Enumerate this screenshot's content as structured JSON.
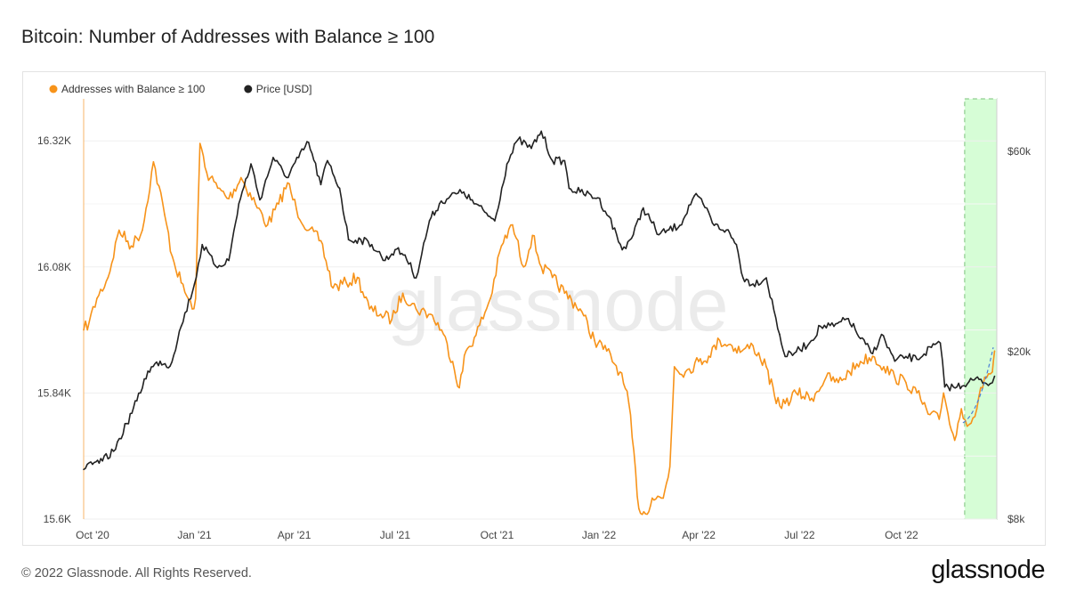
{
  "title": "Bitcoin: Number of Addresses with Balance ≥ 100",
  "footer": "© 2022 Glassnode. All Rights Reserved.",
  "brand": "glassnode",
  "watermark": "glassnode",
  "colors": {
    "addresses": "#f7931a",
    "price": "#222222",
    "forecast_band": "#d6fdd6",
    "forecast_border": "#7ac27a",
    "forecast_line": "#4a7fd6",
    "grid": "#efefef"
  },
  "chart_data": {
    "type": "line",
    "title": "Bitcoin: Number of Addresses with Balance ≥ 100",
    "x_range": [
      "2020-09-23",
      "2022-12-26"
    ],
    "x_ticks": [
      {
        "label": "Oct '20",
        "date": "2020-10-01"
      },
      {
        "label": "Jan '21",
        "date": "2021-01-01"
      },
      {
        "label": "Apr '21",
        "date": "2021-04-01"
      },
      {
        "label": "Jul '21",
        "date": "2021-07-01"
      },
      {
        "label": "Oct '21",
        "date": "2021-10-01"
      },
      {
        "label": "Jan '22",
        "date": "2022-01-01"
      },
      {
        "label": "Apr '22",
        "date": "2022-04-01"
      },
      {
        "label": "Jul '22",
        "date": "2022-07-01"
      },
      {
        "label": "Oct '22",
        "date": "2022-10-01"
      }
    ],
    "y_left": {
      "ylim": [
        15600,
        16400
      ],
      "ticks": [
        {
          "label": "15.6K",
          "value": 15600
        },
        {
          "label": "15.84K",
          "value": 15840
        },
        {
          "label": "16.08K",
          "value": 16080
        },
        {
          "label": "16.32K",
          "value": 16320
        }
      ]
    },
    "y_right": {
      "scale": "log",
      "ylim": [
        8000,
        80000
      ],
      "ticks": [
        {
          "label": "$8k",
          "value": 8000
        },
        {
          "label": "$20k",
          "value": 20000
        },
        {
          "label": "$60k",
          "value": 60000
        }
      ]
    },
    "forecast_region": [
      "2022-11-27",
      "2022-12-26"
    ],
    "legend_position": "top-left",
    "legend": [
      "Addresses with Balance ≥ 100",
      "Price [USD]"
    ],
    "series": [
      {
        "name": "Addresses with Balance ≥ 100",
        "axis": "left",
        "x": [
          "2020-09-23",
          "2020-09-28",
          "2020-10-05",
          "2020-10-15",
          "2020-10-25",
          "2020-11-05",
          "2020-11-15",
          "2020-11-25",
          "2020-12-05",
          "2020-12-12",
          "2020-12-20",
          "2020-12-30",
          "2021-01-02",
          "2021-01-06",
          "2021-01-12",
          "2021-01-22",
          "2021-02-01",
          "2021-02-12",
          "2021-02-25",
          "2021-03-08",
          "2021-03-18",
          "2021-03-26",
          "2021-04-03",
          "2021-04-14",
          "2021-04-25",
          "2021-05-06",
          "2021-05-18",
          "2021-05-28",
          "2021-06-08",
          "2021-06-18",
          "2021-06-28",
          "2021-07-08",
          "2021-07-20",
          "2021-08-02",
          "2021-08-12",
          "2021-08-22",
          "2021-08-28",
          "2021-09-03",
          "2021-09-12",
          "2021-09-25",
          "2021-10-05",
          "2021-10-15",
          "2021-10-25",
          "2021-11-02",
          "2021-11-10",
          "2021-11-20",
          "2021-12-01",
          "2021-12-15",
          "2021-12-28",
          "2022-01-08",
          "2022-01-20",
          "2022-01-28",
          "2022-02-06",
          "2022-02-12",
          "2022-02-18",
          "2022-02-28",
          "2022-03-06",
          "2022-03-10",
          "2022-03-20",
          "2022-04-01",
          "2022-04-10",
          "2022-04-20",
          "2022-05-01",
          "2022-05-10",
          "2022-05-20",
          "2022-06-01",
          "2022-06-10",
          "2022-06-18",
          "2022-06-28",
          "2022-07-12",
          "2022-07-25",
          "2022-08-05",
          "2022-08-15",
          "2022-08-25",
          "2022-09-05",
          "2022-09-15",
          "2022-09-25",
          "2022-10-05",
          "2022-10-15",
          "2022-10-25",
          "2022-11-04",
          "2022-11-08",
          "2022-11-12",
          "2022-11-18",
          "2022-11-24",
          "2022-12-01",
          "2022-12-08",
          "2022-12-15",
          "2022-12-22",
          "2022-12-24"
        ],
        "values": [
          15960,
          15975,
          16020,
          16060,
          16150,
          16120,
          16150,
          16280,
          16180,
          16100,
          16050,
          16000,
          16020,
          16315,
          16260,
          16230,
          16210,
          16250,
          16200,
          16160,
          16200,
          16240,
          16190,
          16150,
          16130,
          16040,
          16050,
          16060,
          16000,
          15990,
          15980,
          16030,
          16000,
          15990,
          15960,
          15900,
          15850,
          15920,
          15950,
          16020,
          16120,
          16160,
          16080,
          16140,
          16080,
          16060,
          16030,
          16000,
          15940,
          15920,
          15880,
          15820,
          15620,
          15610,
          15640,
          15640,
          15700,
          15890,
          15880,
          15900,
          15910,
          15940,
          15930,
          15920,
          15930,
          15890,
          15820,
          15820,
          15840,
          15830,
          15870,
          15860,
          15880,
          15900,
          15910,
          15890,
          15870,
          15860,
          15840,
          15800,
          15790,
          15840,
          15800,
          15750,
          15810,
          15780,
          15810,
          15870,
          15880,
          15920
        ]
      },
      {
        "name": "Price [USD]",
        "axis": "right",
        "x": [
          "2020-09-23",
          "2020-10-01",
          "2020-10-10",
          "2020-10-20",
          "2020-11-01",
          "2020-11-10",
          "2020-11-20",
          "2020-12-01",
          "2020-12-10",
          "2020-12-20",
          "2021-01-01",
          "2021-01-08",
          "2021-01-20",
          "2021-02-01",
          "2021-02-10",
          "2021-02-21",
          "2021-03-01",
          "2021-03-13",
          "2021-03-25",
          "2021-04-05",
          "2021-04-14",
          "2021-04-25",
          "2021-05-01",
          "2021-05-12",
          "2021-05-20",
          "2021-05-31",
          "2021-06-10",
          "2021-06-22",
          "2021-07-01",
          "2021-07-10",
          "2021-07-20",
          "2021-08-01",
          "2021-08-10",
          "2021-08-20",
          "2021-09-01",
          "2021-09-07",
          "2021-09-20",
          "2021-09-29",
          "2021-10-10",
          "2021-10-20",
          "2021-11-01",
          "2021-11-10",
          "2021-11-20",
          "2021-12-01",
          "2021-12-05",
          "2021-12-15",
          "2021-12-31",
          "2022-01-10",
          "2022-01-22",
          "2022-02-01",
          "2022-02-10",
          "2022-02-24",
          "2022-03-05",
          "2022-03-15",
          "2022-03-28",
          "2022-04-05",
          "2022-04-15",
          "2022-04-26",
          "2022-05-05",
          "2022-05-11",
          "2022-05-20",
          "2022-06-01",
          "2022-06-13",
          "2022-06-18",
          "2022-06-28",
          "2022-07-10",
          "2022-07-20",
          "2022-08-01",
          "2022-08-14",
          "2022-08-25",
          "2022-09-05",
          "2022-09-13",
          "2022-09-25",
          "2022-10-05",
          "2022-10-15",
          "2022-10-28",
          "2022-11-05",
          "2022-11-09",
          "2022-11-20",
          "2022-12-01",
          "2022-12-10",
          "2022-12-20",
          "2022-12-24"
        ],
        "values": [
          10500,
          10800,
          11000,
          11600,
          13500,
          15300,
          18000,
          19000,
          18500,
          23000,
          29000,
          36000,
          32000,
          33000,
          45000,
          56000,
          46000,
          58000,
          52000,
          58000,
          63000,
          50000,
          57000,
          49000,
          37000,
          37000,
          36000,
          33000,
          35000,
          34000,
          30000,
          41000,
          45000,
          47000,
          48000,
          46000,
          43000,
          41000,
          56000,
          64000,
          61000,
          67000,
          57000,
          57000,
          49000,
          48000,
          46500,
          42000,
          35000,
          38000,
          44000,
          38000,
          39000,
          40000,
          47000,
          45000,
          40000,
          39000,
          36000,
          30000,
          29000,
          30000,
          22000,
          19500,
          20000,
          21000,
          23000,
          23000,
          24000,
          21500,
          19800,
          22000,
          19000,
          19500,
          19200,
          20500,
          21000,
          16500,
          16500,
          17000,
          17200,
          16800,
          17500
        ]
      }
    ]
  }
}
